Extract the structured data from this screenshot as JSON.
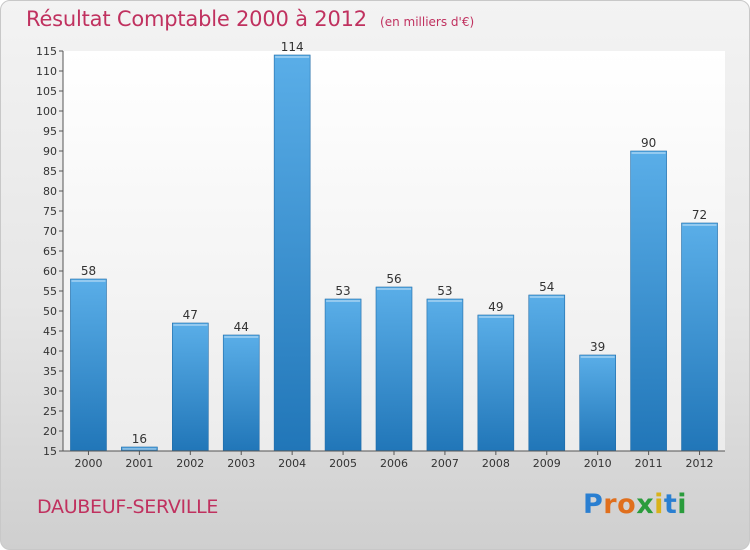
{
  "header": {
    "title": "Résultat Comptable 2000 à 2012",
    "subtitle": "(en milliers d'€)"
  },
  "footer": {
    "commune": "DAUBEUF-SERVILLE",
    "brand": "Proxiti"
  },
  "colors": {
    "accent": "#c0315f",
    "bar_light": "#5aaee8",
    "bar_dark": "#2176b8",
    "logo_letters": [
      "#2a7fd1",
      "#e06f1d",
      "#e06f1d",
      "#2a9c3c",
      "#d9b21b",
      "#2a7fd1",
      "#2a9c3c"
    ]
  },
  "chart_data": {
    "type": "bar",
    "categories": [
      "2000",
      "2001",
      "2002",
      "2003",
      "2004",
      "2005",
      "2006",
      "2007",
      "2008",
      "2009",
      "2010",
      "2011",
      "2012"
    ],
    "values": [
      58,
      16,
      47,
      44,
      114,
      53,
      56,
      53,
      49,
      54,
      39,
      90,
      72
    ],
    "ylim": [
      15,
      115
    ],
    "yticks": [
      15,
      20,
      25,
      30,
      35,
      40,
      45,
      50,
      55,
      60,
      65,
      70,
      75,
      80,
      85,
      90,
      95,
      100,
      105,
      110,
      115
    ],
    "grid": false,
    "data_labels": true
  }
}
